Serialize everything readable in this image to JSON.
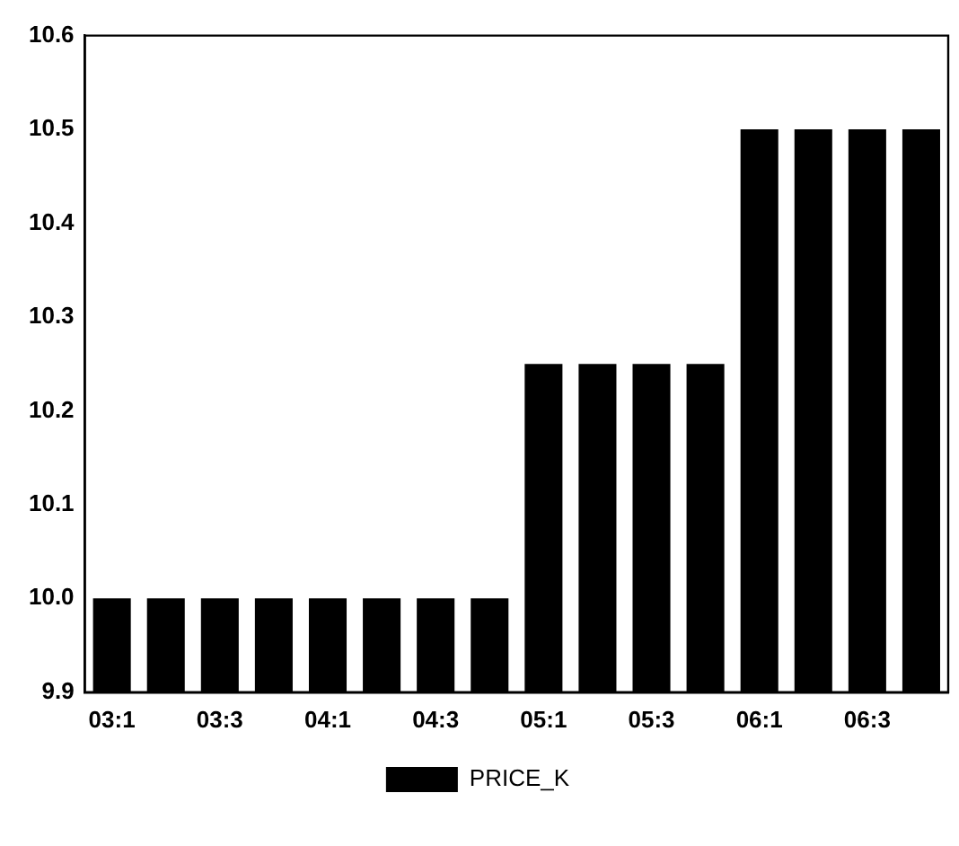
{
  "chart_data": {
    "type": "bar",
    "categories": [
      "03:1",
      null,
      "03:3",
      null,
      "04:1",
      null,
      "04:3",
      null,
      "05:1",
      null,
      "05:3",
      null,
      "06:1",
      null,
      "06:3",
      null
    ],
    "series": [
      {
        "name": "PRICE_K",
        "color": "#000000",
        "values": [
          10.0,
          10.0,
          10.0,
          10.0,
          10.0,
          10.0,
          10.0,
          10.0,
          10.25,
          10.25,
          10.25,
          10.25,
          10.5,
          10.5,
          10.5,
          10.5
        ]
      }
    ],
    "ylim": [
      9.9,
      10.6
    ],
    "yticks": [
      9.9,
      {
        "value": 10,
        "label": "10.0"
      },
      10.1,
      10.2,
      10.3,
      10.4,
      10.5,
      10.6
    ],
    "grid": false,
    "legend": "bottom"
  }
}
